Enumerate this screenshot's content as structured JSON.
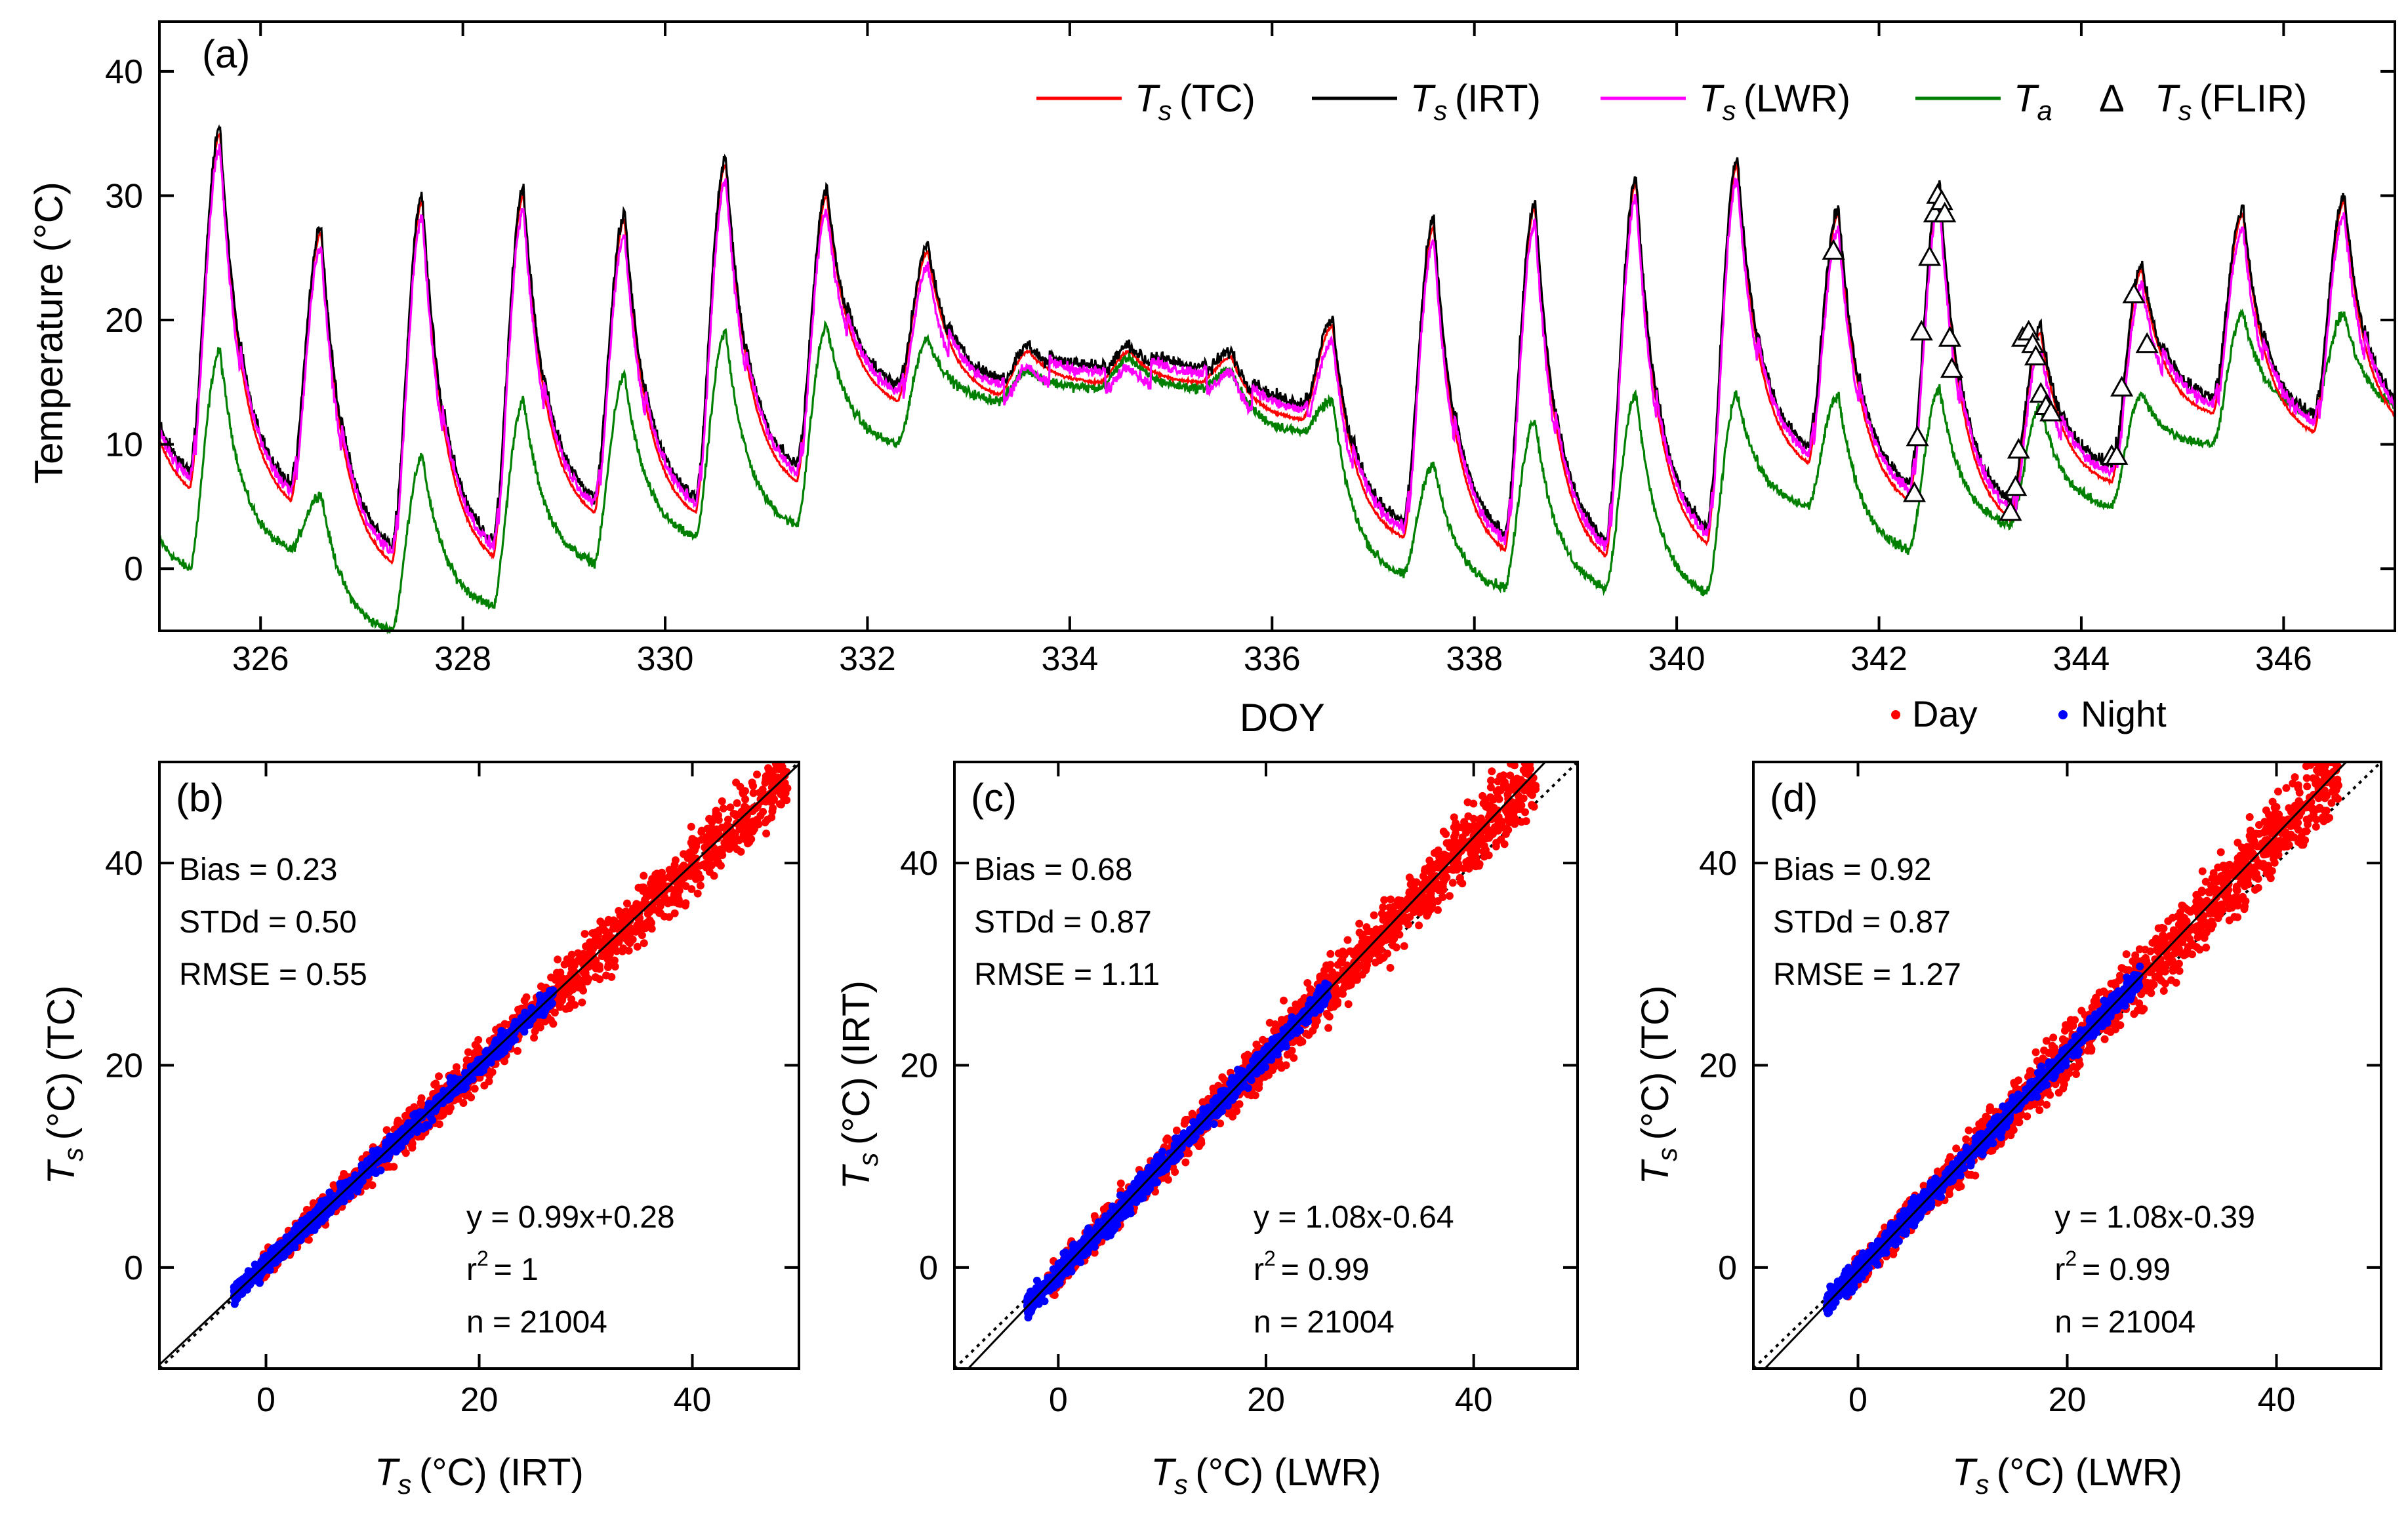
{
  "colors": {
    "ts_tc": "#ff0000",
    "ts_irt": "#000000",
    "ts_lwr": "#ff00ff",
    "ta": "#008000",
    "day": "#ff0000",
    "night": "#0000ff",
    "frame": "#000000"
  },
  "chart_data": [
    {
      "type": "line",
      "panel_label": "(a)",
      "xlabel": "DOY",
      "ylabel": "Temperature (°C)",
      "xlim": [
        325,
        347.1
      ],
      "ylim": [
        -5,
        44
      ],
      "xticks": [
        326,
        328,
        330,
        332,
        334,
        336,
        338,
        340,
        342,
        344,
        346
      ],
      "yticks": [
        0,
        10,
        20,
        30,
        40
      ],
      "legend": [
        {
          "symbol": "T",
          "sub": "s",
          "suffix": "(TC)",
          "series": "ts_tc"
        },
        {
          "symbol": "T",
          "sub": "s",
          "suffix": "(IRT)",
          "series": "ts_irt"
        },
        {
          "symbol": "T",
          "sub": "s",
          "suffix": "(LWR)",
          "series": "ts_lwr"
        },
        {
          "symbol": "T",
          "sub": "a",
          "suffix": "",
          "series": "ta"
        },
        {
          "symbol": "T",
          "sub": "s",
          "suffix": "(FLIR)",
          "marker": "Δ",
          "series": "flir"
        }
      ],
      "legend_placement": "top-right",
      "day_night_legend": {
        "day": "Day",
        "night": "Night"
      },
      "daily_cycles": [
        {
          "doy": 325,
          "ts_min": 6.5,
          "ts_max": 35.0,
          "ta_min": 0.0,
          "ta_max": 17.5
        },
        {
          "doy": 326,
          "ts_min": 5.5,
          "ts_max": 27.0,
          "ta_min": 1.5,
          "ta_max": 6.0
        },
        {
          "doy": 327,
          "ts_min": 0.5,
          "ts_max": 29.5,
          "ta_min": -5.0,
          "ta_max": 9.0
        },
        {
          "doy": 328,
          "ts_min": 1.0,
          "ts_max": 30.0,
          "ta_min": -3.0,
          "ta_max": 13.5
        },
        {
          "doy": 329,
          "ts_min": 4.5,
          "ts_max": 28.0,
          "ta_min": 0.5,
          "ta_max": 15.5
        },
        {
          "doy": 330,
          "ts_min": 4.5,
          "ts_max": 32.5,
          "ta_min": 2.5,
          "ta_max": 19.0
        },
        {
          "doy": 331,
          "ts_min": 7.0,
          "ts_max": 30.0,
          "ta_min": 3.5,
          "ta_max": 19.5
        },
        {
          "doy": 332,
          "ts_min": 13.5,
          "ts_max": 25.5,
          "ta_min": 10.0,
          "ta_max": 18.5
        },
        {
          "doy": 333,
          "ts_min": 14.0,
          "ts_max": 17.5,
          "ta_min": 13.5,
          "ta_max": 16.0
        },
        {
          "doy": 334,
          "ts_min": 15.0,
          "ts_max": 17.5,
          "ta_min": 14.5,
          "ta_max": 17.0
        },
        {
          "doy": 335,
          "ts_min": 15.0,
          "ts_max": 17.0,
          "ta_min": 14.5,
          "ta_max": 16.0
        },
        {
          "doy": 336,
          "ts_min": 12.0,
          "ts_max": 19.5,
          "ta_min": 11.0,
          "ta_max": 13.5
        },
        {
          "doy": 337,
          "ts_min": 2.5,
          "ts_max": 27.5,
          "ta_min": -0.5,
          "ta_max": 8.5
        },
        {
          "doy": 338,
          "ts_min": 1.5,
          "ts_max": 29.0,
          "ta_min": -1.5,
          "ta_max": 12.0
        },
        {
          "doy": 339,
          "ts_min": 1.0,
          "ts_max": 31.0,
          "ta_min": -1.5,
          "ta_max": 14.0
        },
        {
          "doy": 340,
          "ts_min": 2.0,
          "ts_max": 32.5,
          "ta_min": -2.0,
          "ta_max": 14.0
        },
        {
          "doy": 341,
          "ts_min": 8.5,
          "ts_max": 28.5,
          "ta_min": 5.0,
          "ta_max": 14.0
        },
        {
          "doy": 342,
          "ts_min": 5.5,
          "ts_max": 30.5,
          "ta_min": 1.5,
          "ta_max": 14.5
        },
        {
          "doy": 343,
          "ts_min": 4.0,
          "ts_max": 19.0,
          "ta_min": 3.5,
          "ta_max": 13.0
        },
        {
          "doy": 344,
          "ts_min": 7.0,
          "ts_max": 24.0,
          "ta_min": 5.0,
          "ta_max": 14.0
        },
        {
          "doy": 345,
          "ts_min": 12.5,
          "ts_max": 28.5,
          "ta_min": 10.0,
          "ta_max": 20.5
        },
        {
          "doy": 346,
          "ts_min": 11.0,
          "ts_max": 29.5,
          "ta_min": 12.5,
          "ta_max": 20.5
        }
      ],
      "ts_flir_points": [
        {
          "x": 341.55,
          "y": 25.5
        },
        {
          "x": 342.35,
          "y": 6.0
        },
        {
          "x": 342.38,
          "y": 10.5
        },
        {
          "x": 342.42,
          "y": 19.0
        },
        {
          "x": 342.5,
          "y": 25.0
        },
        {
          "x": 342.55,
          "y": 28.5
        },
        {
          "x": 342.58,
          "y": 30.0
        },
        {
          "x": 342.62,
          "y": 29.5
        },
        {
          "x": 342.65,
          "y": 28.5
        },
        {
          "x": 342.7,
          "y": 18.5
        },
        {
          "x": 342.72,
          "y": 16.0
        },
        {
          "x": 343.3,
          "y": 4.5
        },
        {
          "x": 343.35,
          "y": 6.5
        },
        {
          "x": 343.38,
          "y": 9.5
        },
        {
          "x": 343.42,
          "y": 18.5
        },
        {
          "x": 343.48,
          "y": 19.0
        },
        {
          "x": 343.52,
          "y": 18.0
        },
        {
          "x": 343.55,
          "y": 17.0
        },
        {
          "x": 343.6,
          "y": 14.0
        },
        {
          "x": 343.65,
          "y": 13.0
        },
        {
          "x": 343.7,
          "y": 12.5
        },
        {
          "x": 344.3,
          "y": 9.0
        },
        {
          "x": 344.35,
          "y": 9.0
        },
        {
          "x": 344.4,
          "y": 14.5
        },
        {
          "x": 344.52,
          "y": 22.0
        },
        {
          "x": 344.65,
          "y": 18.0
        }
      ]
    },
    {
      "type": "scatter",
      "panel_label": "(b)",
      "xlabel": {
        "symbol": "T",
        "sub": "s",
        "suffix": "(°C) (IRT)"
      },
      "ylabel": {
        "symbol": "T",
        "sub": "s",
        "suffix": "(°C) (TC)"
      },
      "xlim": [
        -10,
        50
      ],
      "ylim": [
        -10,
        50
      ],
      "xticks": [
        0,
        20,
        40
      ],
      "yticks": [
        0,
        20,
        40
      ],
      "stats": [
        "Bias = 0.23",
        "STDd = 0.50",
        "RMSE = 0.55"
      ],
      "fit": {
        "eq": "y = 0.99x+0.28",
        "r2_label": "r",
        "r2_value": "=   1",
        "n": "n = 21004"
      },
      "slope": 0.99,
      "intercept": 0.28,
      "day_range": [
        -1,
        49
      ],
      "night_range": [
        -3,
        27
      ],
      "day_spread": 1.8,
      "night_spread": 0.9
    },
    {
      "type": "scatter",
      "panel_label": "(c)",
      "xlabel": {
        "symbol": "T",
        "sub": "s",
        "suffix": "(°C) (LWR)"
      },
      "ylabel": {
        "symbol": "T",
        "sub": "s",
        "suffix": "(°C) (IRT)"
      },
      "xlim": [
        -10,
        50
      ],
      "ylim": [
        -10,
        50
      ],
      "xticks": [
        0,
        20,
        40
      ],
      "yticks": [
        0,
        20,
        40
      ],
      "stats": [
        "Bias = 0.68",
        "STDd = 0.87",
        "RMSE = 1.11"
      ],
      "fit": {
        "eq": "y = 1.08x-0.64",
        "r2_label": "r",
        "r2_value": "= 0.99",
        "n": "n = 21004"
      },
      "slope": 1.08,
      "intercept": -0.64,
      "day_range": [
        -1,
        46
      ],
      "night_range": [
        -3,
        26
      ],
      "day_spread": 2.0,
      "night_spread": 1.0
    },
    {
      "type": "scatter",
      "panel_label": "(d)",
      "xlabel": {
        "symbol": "T",
        "sub": "s",
        "suffix": "(°C) (LWR)"
      },
      "ylabel": {
        "symbol": "T",
        "sub": "s",
        "suffix": "(°C) (TC)"
      },
      "xlim": [
        -10,
        50
      ],
      "ylim": [
        -10,
        50
      ],
      "xticks": [
        0,
        20,
        40
      ],
      "yticks": [
        0,
        20,
        40
      ],
      "stats": [
        "Bias = 0.92",
        "STDd = 0.87",
        "RMSE = 1.27"
      ],
      "fit": {
        "eq": "y = 1.08x-0.39",
        "r2_label": "r",
        "r2_value": "= 0.99",
        "n": "n = 21004"
      },
      "slope": 1.08,
      "intercept": -0.39,
      "day_range": [
        -1,
        46
      ],
      "night_range": [
        -3,
        27
      ],
      "day_spread": 2.2,
      "night_spread": 1.0
    }
  ]
}
